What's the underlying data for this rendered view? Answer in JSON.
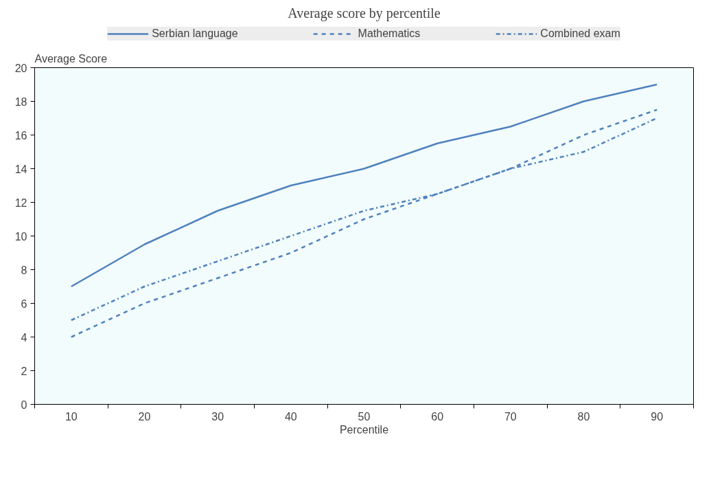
{
  "chart_data": {
    "type": "line",
    "title": "Average score by percentile",
    "xlabel": "Percentile",
    "ylabel": "Average Score",
    "categories": [
      "10",
      "20",
      "30",
      "40",
      "50",
      "60",
      "70",
      "80",
      "90"
    ],
    "series": [
      {
        "name": "Serbian language",
        "color": "#4f81bd",
        "line_style": "solid",
        "values": [
          7,
          9.5,
          11.5,
          13,
          14,
          15.5,
          16.5,
          18,
          19
        ]
      },
      {
        "name": "Mathematics",
        "color": "#4f81bd",
        "line_style": "dashed",
        "values": [
          4,
          6,
          7.5,
          9,
          11,
          12.5,
          14,
          16,
          17.5
        ]
      },
      {
        "name": "Combined exam",
        "color": "#4f81bd",
        "line_style": "dashdot",
        "values": [
          5,
          7,
          8.5,
          10,
          11.5,
          12.5,
          14,
          15,
          17
        ]
      }
    ],
    "ylim": [
      0,
      20
    ],
    "yticks": [
      0,
      2,
      4,
      6,
      8,
      10,
      12,
      14,
      16,
      18,
      20
    ],
    "grid": false,
    "legend": "top",
    "marker": "none"
  }
}
